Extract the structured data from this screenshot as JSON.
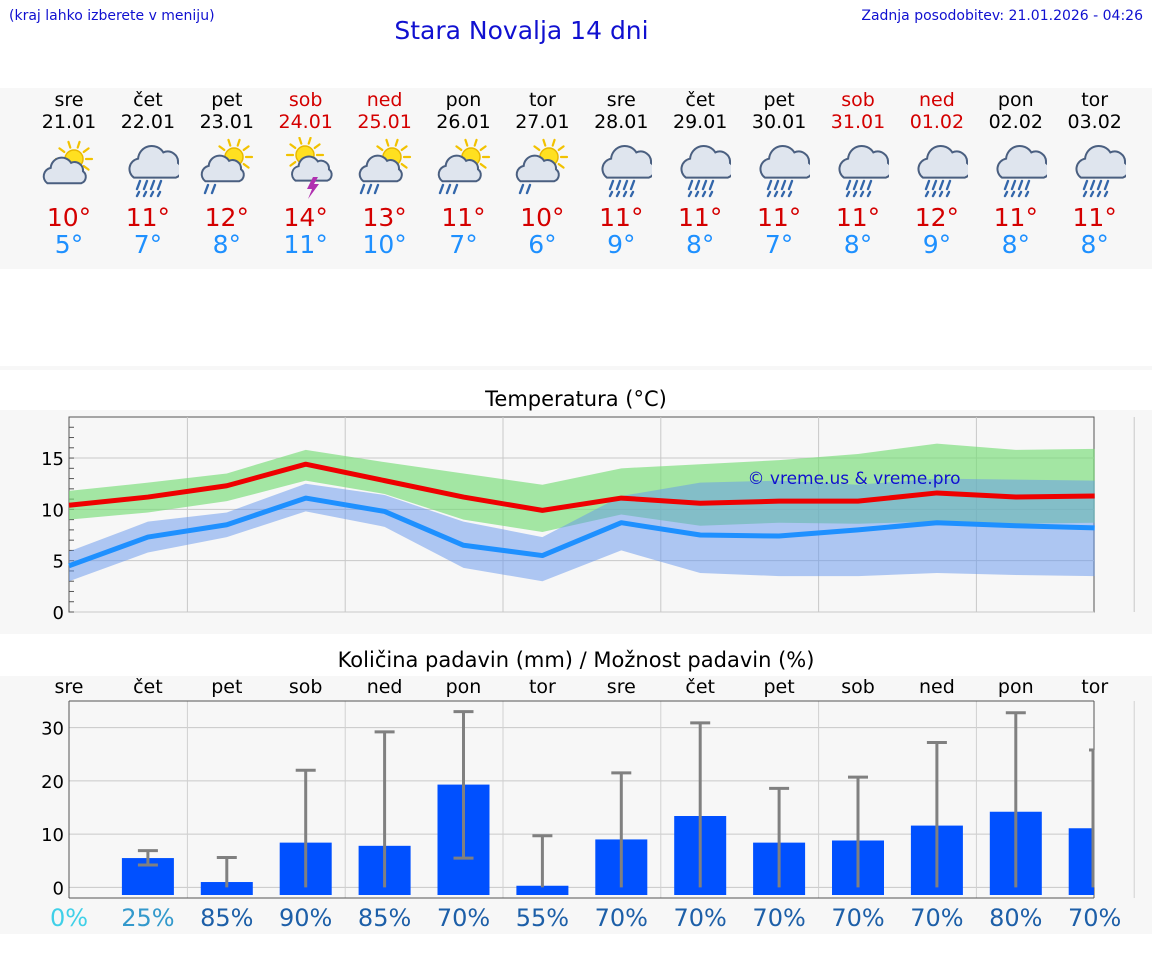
{
  "header": {
    "hint": "(kraj lahko izberete v meniju)",
    "title": "Stara Novalja 14 dni",
    "updated": "Zadnja posodobitev: 21.01.2026 - 04:26"
  },
  "days": [
    {
      "name": "sre",
      "date": "21.01",
      "icon": "partly-cloudy-sun-icon",
      "tmax": "10°",
      "tmin": "5°",
      "weekend": false
    },
    {
      "name": "čet",
      "date": "22.01",
      "icon": "cloud-rain-icon",
      "tmax": "11°",
      "tmin": "7°",
      "weekend": false
    },
    {
      "name": "pet",
      "date": "23.01",
      "icon": "sun-cloud-rain-icon",
      "tmax": "12°",
      "tmin": "8°",
      "weekend": false
    },
    {
      "name": "sob",
      "date": "24.01",
      "icon": "sun-cloud-thunder-icon",
      "tmax": "14°",
      "tmin": "11°",
      "weekend": true
    },
    {
      "name": "ned",
      "date": "25.01",
      "icon": "sun-cloud-heavy-rain-icon",
      "tmax": "13°",
      "tmin": "10°",
      "weekend": true
    },
    {
      "name": "pon",
      "date": "26.01",
      "icon": "sun-cloud-heavy-rain-icon",
      "tmax": "11°",
      "tmin": "7°",
      "weekend": false
    },
    {
      "name": "tor",
      "date": "27.01",
      "icon": "sun-cloud-rain-icon",
      "tmax": "10°",
      "tmin": "6°",
      "weekend": false
    },
    {
      "name": "sre",
      "date": "28.01",
      "icon": "cloud-rain-icon",
      "tmax": "11°",
      "tmin": "9°",
      "weekend": false
    },
    {
      "name": "čet",
      "date": "29.01",
      "icon": "cloud-rain-icon",
      "tmax": "11°",
      "tmin": "8°",
      "weekend": false
    },
    {
      "name": "pet",
      "date": "30.01",
      "icon": "cloud-rain-icon",
      "tmax": "11°",
      "tmin": "7°",
      "weekend": false
    },
    {
      "name": "sob",
      "date": "31.01",
      "icon": "cloud-rain-icon",
      "tmax": "11°",
      "tmin": "8°",
      "weekend": true
    },
    {
      "name": "ned",
      "date": "01.02",
      "icon": "cloud-rain-icon",
      "tmax": "12°",
      "tmin": "9°",
      "weekend": true
    },
    {
      "name": "pon",
      "date": "02.02",
      "icon": "cloud-rain-icon",
      "tmax": "11°",
      "tmin": "8°",
      "weekend": false
    },
    {
      "name": "tor",
      "date": "03.02",
      "icon": "cloud-rain-icon",
      "tmax": "11°",
      "tmin": "8°",
      "weekend": false
    }
  ],
  "colors": {
    "max_line": "#ee0000",
    "min_line": "#1e90ff",
    "max_band": "#77dd77",
    "min_band": "#6495ed",
    "bar": "#0050ff",
    "error": "#808080",
    "weekend": "#d40000",
    "link": "#1010d0"
  },
  "chart_data": [
    {
      "type": "line",
      "title": "Temperatura (°C)",
      "watermark": "© vreme.us & vreme.pro",
      "ylim": [
        0,
        19
      ],
      "yticks": [
        0,
        5,
        10,
        15
      ],
      "x": [
        0,
        1,
        2,
        3,
        4,
        5,
        6,
        7,
        8,
        9,
        10,
        11,
        12,
        13
      ],
      "series": [
        {
          "name": "max",
          "values": [
            10.4,
            11.2,
            12.3,
            14.4,
            12.8,
            11.2,
            9.9,
            11.1,
            10.6,
            10.8,
            10.8,
            11.6,
            11.2,
            11.3
          ]
        },
        {
          "name": "min",
          "values": [
            4.5,
            7.3,
            8.5,
            11.1,
            9.8,
            6.5,
            5.5,
            8.7,
            7.5,
            7.4,
            8.0,
            8.7,
            8.4,
            8.2
          ]
        }
      ],
      "bands": [
        {
          "name": "max-range",
          "low": [
            9.0,
            9.7,
            10.8,
            12.8,
            11.5,
            9.0,
            7.8,
            9.5,
            8.4,
            8.7,
            8.6,
            8.8,
            8.6,
            8.7
          ],
          "high": [
            11.8,
            12.6,
            13.5,
            15.8,
            14.6,
            13.5,
            12.4,
            14.0,
            14.4,
            14.8,
            15.4,
            16.4,
            15.8,
            15.9
          ]
        },
        {
          "name": "min-range",
          "low": [
            3.0,
            5.8,
            7.3,
            9.8,
            8.3,
            4.3,
            3.0,
            6.0,
            3.8,
            3.5,
            3.5,
            3.8,
            3.6,
            3.5
          ],
          "high": [
            5.9,
            8.8,
            9.7,
            12.5,
            11.4,
            8.8,
            7.3,
            11.3,
            12.6,
            12.8,
            12.4,
            13.0,
            12.9,
            12.8
          ]
        }
      ]
    },
    {
      "type": "bar",
      "title": "Količina padavin (mm) / Možnost padavin (%)",
      "ylim": [
        -2,
        35
      ],
      "yticks": [
        0,
        10,
        20,
        30
      ],
      "categories": [
        "sre",
        "čet",
        "pet",
        "sob",
        "ned",
        "pon",
        "tor",
        "sre",
        "čet",
        "pet",
        "sob",
        "ned",
        "pon",
        "tor"
      ],
      "values": [
        0,
        5.5,
        1.0,
        8.4,
        7.8,
        19.3,
        0.3,
        9.0,
        13.4,
        8.4,
        8.8,
        11.6,
        14.2,
        11.1
      ],
      "err_low": [
        0,
        4.2,
        0,
        0,
        0,
        5.5,
        0,
        0,
        0,
        0,
        0,
        0,
        0,
        0
      ],
      "err_high": [
        0,
        6.9,
        5.6,
        22.0,
        29.2,
        33.0,
        9.7,
        21.5,
        30.9,
        18.6,
        20.7,
        27.2,
        32.8,
        25.8
      ],
      "probability": [
        "0%",
        "25%",
        "85%",
        "90%",
        "85%",
        "70%",
        "55%",
        "70%",
        "70%",
        "70%",
        "70%",
        "70%",
        "80%",
        "70%"
      ],
      "probability_colors": [
        "#40d0e8",
        "#3399cc",
        "#1d5fa8",
        "#1d5fa8",
        "#1d5fa8",
        "#1d5fa8",
        "#1d5fa8",
        "#1d5fa8",
        "#1d5fa8",
        "#1d5fa8",
        "#1d5fa8",
        "#1d5fa8",
        "#1d5fa8",
        "#1d5fa8"
      ]
    }
  ]
}
